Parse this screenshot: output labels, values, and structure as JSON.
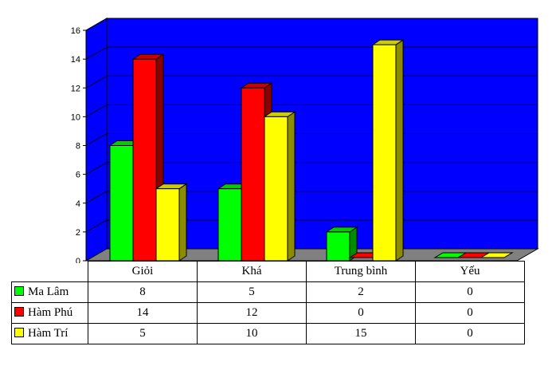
{
  "chart_data": {
    "type": "bar",
    "categories": [
      "Giỏi",
      "Khá",
      "Trung bình",
      "Yếu"
    ],
    "series": [
      {
        "name": "Ma Lâm",
        "color": "#00ff00",
        "values": [
          8,
          5,
          2,
          0
        ]
      },
      {
        "name": "Hàm Phú",
        "color": "#ff0000",
        "values": [
          14,
          12,
          0,
          0
        ]
      },
      {
        "name": "Hàm Trí",
        "color": "#ffff00",
        "values": [
          5,
          10,
          15,
          0
        ]
      }
    ],
    "ylim": [
      0,
      16
    ],
    "yticks": [
      "0",
      "2",
      "4",
      "6",
      "8",
      "10",
      "12",
      "14",
      "16"
    ],
    "grid": true,
    "style": "3d",
    "wall_color": "#0000ff",
    "floor_color": "#808080",
    "legend": "data-table-below"
  },
  "table": {
    "rows": [
      {
        "label": "Ma Lâm",
        "cells": [
          "8",
          "5",
          "2",
          "0"
        ]
      },
      {
        "label": "Hàm Phú",
        "cells": [
          "14",
          "12",
          "0",
          "0"
        ]
      },
      {
        "label": "Hàm Trí",
        "cells": [
          "5",
          "10",
          "15",
          "0"
        ]
      }
    ]
  }
}
